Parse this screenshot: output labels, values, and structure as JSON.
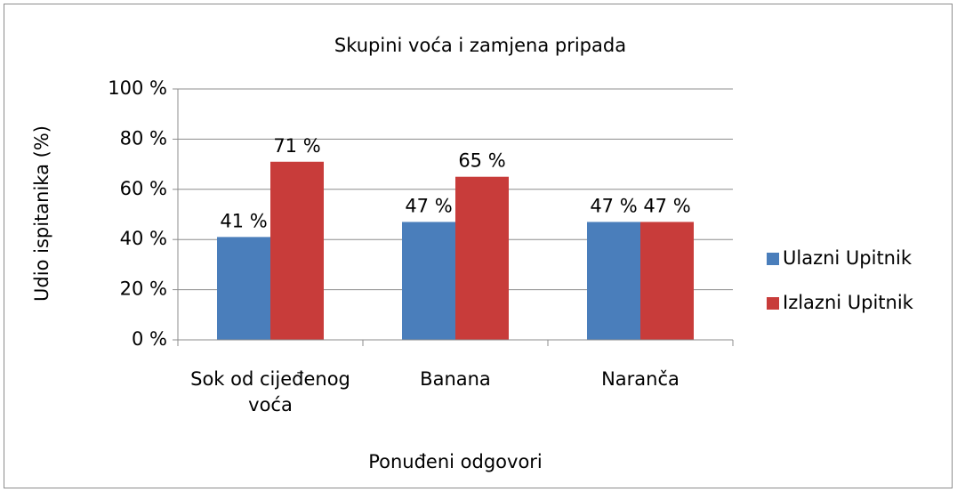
{
  "chart_data": {
    "type": "bar",
    "title": "Skupini voća i zamjena pripada",
    "x_label": "Ponuđeni odgovori",
    "y_label": "Udio ispitanika (%)",
    "categories": [
      "Sok od cijeđenog voća",
      "Banana",
      "Naranča"
    ],
    "series": [
      {
        "name": "Ulazni Upitnik",
        "color": "#4a7ebb",
        "values": [
          41,
          47,
          47
        ],
        "value_labels": [
          "41 %",
          "47 %",
          "47 %"
        ]
      },
      {
        "name": "Izlazni Upitnik",
        "color": "#c83c3a",
        "values": [
          71,
          65,
          47
        ],
        "value_labels": [
          "71 %",
          "65 %",
          "47 %"
        ]
      }
    ],
    "ylim": [
      0,
      100
    ],
    "yticks": [
      {
        "value": 0,
        "label": "0 %"
      },
      {
        "value": 20,
        "label": "20 %"
      },
      {
        "value": 40,
        "label": "40 %"
      },
      {
        "value": 60,
        "label": "60 %"
      },
      {
        "value": 80,
        "label": "80 %"
      },
      {
        "value": 100,
        "label": "100 %"
      }
    ],
    "grid": true,
    "legend": "right"
  }
}
